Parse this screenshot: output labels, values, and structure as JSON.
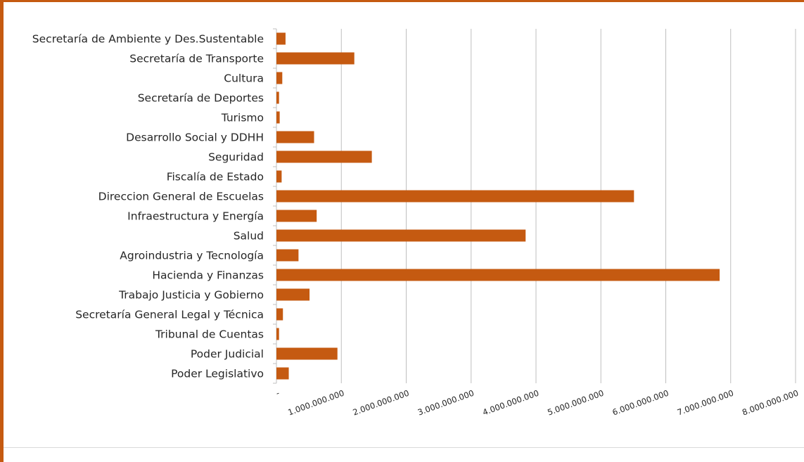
{
  "chart_data": {
    "type": "bar",
    "orientation": "horizontal",
    "categories": [
      "Secretaría de Ambiente y Des.Sustentable",
      "Secretaría de Transporte",
      "Cultura",
      "Secretaría de Deportes",
      "Turismo",
      "Desarrollo Social y DDHH",
      "Seguridad",
      "Fiscalía de Estado",
      "Direccion General de Escuelas",
      "Infraestructura y Energía",
      "Salud",
      "Agroindustria y Tecnología",
      "Hacienda y Finanzas",
      "Trabajo Justicia y Gobierno",
      "Secretaría General Legal y Técnica",
      "Tribunal de Cuentas",
      "Poder Judicial",
      "Poder Legislativo"
    ],
    "values": [
      140000000,
      1200000000,
      90000000,
      40000000,
      50000000,
      580000000,
      1470000000,
      80000000,
      5510000000,
      620000000,
      3840000000,
      340000000,
      6830000000,
      510000000,
      100000000,
      40000000,
      940000000,
      190000000
    ],
    "xlim": [
      0,
      8000000000
    ],
    "x_ticks": [
      "-",
      "1.000.000.000",
      "2.000.000.000",
      "3.000.000.000",
      "4.000.000.000",
      "5.000.000.000",
      "6.000.000.000",
      "7.000.000.000",
      "8.000.000.000"
    ],
    "grid": "vertical",
    "legend": "none",
    "bar_color": "#C55A11",
    "grid_color": "#bfbfbf"
  }
}
